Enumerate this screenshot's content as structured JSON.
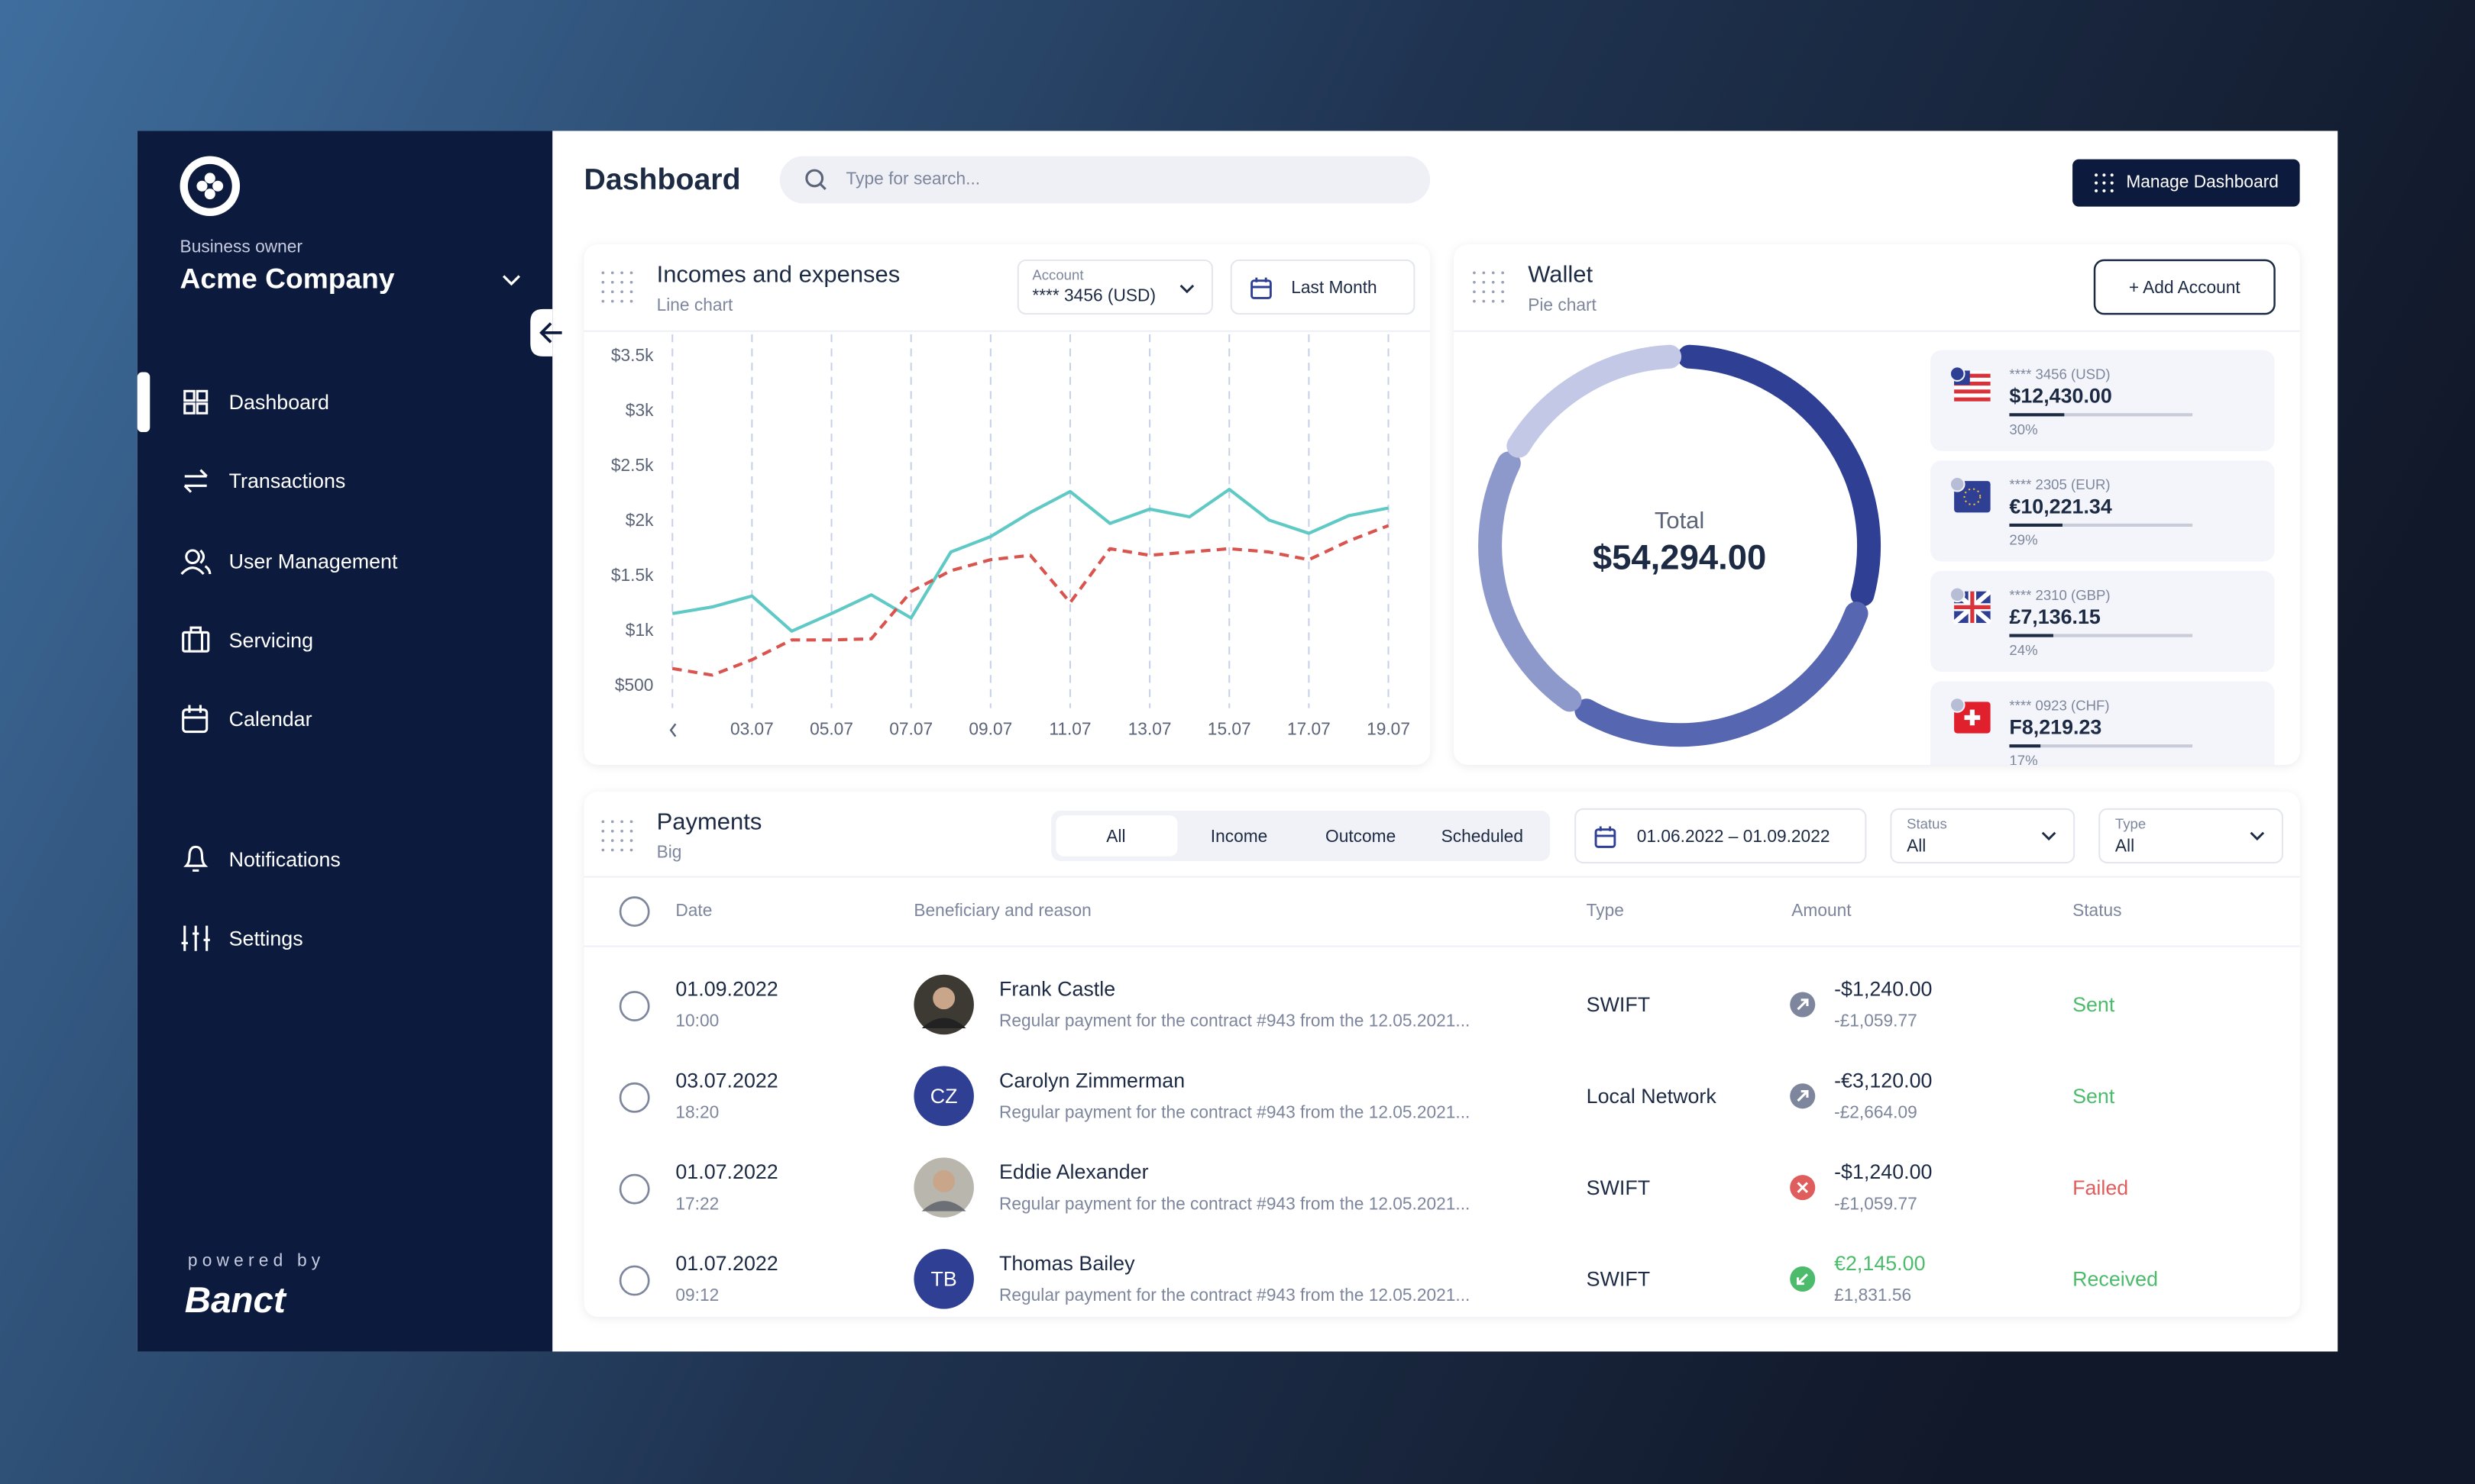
{
  "sidebar": {
    "role": "Business owner",
    "company": "Acme Company",
    "nav": [
      "Dashboard",
      "Transactions",
      "User Management",
      "Servicing",
      "Calendar",
      "Notifications",
      "Settings"
    ],
    "powered_by": "powered by",
    "brand": "Banct"
  },
  "header": {
    "title": "Dashboard",
    "search_placeholder": "Type for search...",
    "button": "Manage Dashboard"
  },
  "incomes_card": {
    "title": "Incomes and expenses",
    "subtitle": "Line chart",
    "account_label": "Account",
    "account_value": "**** 3456 (USD)",
    "period": "Last Month",
    "chart_data": {
      "type": "line",
      "categories": [
        null,
        null,
        "03.07",
        null,
        "05.07",
        null,
        "07.07",
        null,
        "09.07",
        null,
        "11.07",
        null,
        "13.07",
        null,
        "15.07",
        null,
        "17.07",
        null,
        "19.07"
      ],
      "series": [
        {
          "color": "#5ec9c5",
          "values": [
            1160,
            1220,
            1320,
            1000,
            1160,
            1330,
            1120,
            1720,
            1860,
            2080,
            2270,
            1980,
            2110,
            2040,
            2290,
            2010,
            1890,
            2050,
            2120
          ]
        },
        {
          "color": "#d9534f",
          "dashed": true,
          "values": [
            660,
            600,
            740,
            920,
            920,
            930,
            1360,
            1550,
            1650,
            1690,
            1260,
            1750,
            1690,
            1720,
            1750,
            1720,
            1650,
            1820,
            1960
          ]
        }
      ],
      "ylim": [
        300,
        3700
      ],
      "yticks": [
        {
          "value": 500,
          "label": "$500"
        },
        {
          "value": 1000,
          "label": "$1k"
        },
        {
          "value": 1500,
          "label": "$1.5k"
        },
        {
          "value": 2000,
          "label": "$2k"
        },
        {
          "value": 2500,
          "label": "$2.5k"
        },
        {
          "value": 3000,
          "label": "$3k"
        },
        {
          "value": 3500,
          "label": "$3.5k"
        }
      ],
      "grid": true
    }
  },
  "wallet_card": {
    "title": "Wallet",
    "subtitle": "Pie chart",
    "button": "+ Add Account",
    "total_label": "Total",
    "total": "$54,294.00",
    "accounts": [
      {
        "number": "**** 3456 (USD)",
        "balance": "$12,430.00",
        "share": 30,
        "share_label": "30%",
        "color": "#2e3f94"
      },
      {
        "number": "**** 2305 (EUR)",
        "balance": "€10,221.34",
        "share": 29,
        "share_label": "29%",
        "color": "#5766b0"
      },
      {
        "number": "**** 2310 (GBP)",
        "balance": "£7,136.15",
        "share": 24,
        "share_label": "24%",
        "color": "#8e99cb"
      },
      {
        "number": "**** 0923 (CHF)",
        "balance": "F8,219.23",
        "share": 17,
        "share_label": "17%",
        "color": "#c2c8e5"
      }
    ]
  },
  "payments_card": {
    "title": "Payments",
    "subtitle": "Big",
    "tabs": [
      "All",
      "Income",
      "Outcome",
      "Scheduled"
    ],
    "date_range": "01.06.2022 – 01.09.2022",
    "status_filter": {
      "label": "Status",
      "value": "All"
    },
    "type_filter": {
      "label": "Type",
      "value": "All"
    },
    "columns": [
      "Date",
      "Beneficiary and reason",
      "Type",
      "Amount",
      "Status"
    ],
    "rows": [
      {
        "date": "01.09.2022",
        "time": "10:00",
        "name": "Frank Castle",
        "reason": "Regular payment for the contract #943 from the 12.05.2021...",
        "type": "SWIFT",
        "amount": "-$1,240.00",
        "amount_secondary": "-£1,059.77",
        "amount_color": "#1d2a44",
        "icon_color": "#7d869c",
        "status": "Sent",
        "status_color": "#4cbb6c"
      },
      {
        "date": "03.07.2022",
        "time": "18:20",
        "name": "Carolyn Zimmerman",
        "initials": "CZ",
        "reason": "Regular payment for the contract #943 from the 12.05.2021...",
        "type": "Local Network",
        "amount": "-€3,120.00",
        "amount_secondary": "-£2,664.09",
        "amount_color": "#1d2a44",
        "icon_color": "#7d869c",
        "status": "Sent",
        "status_color": "#4cbb6c"
      },
      {
        "date": "01.07.2022",
        "time": "17:22",
        "name": "Eddie Alexander",
        "reason": "Regular payment for the contract #943 from the 12.05.2021...",
        "type": "SWIFT",
        "amount": "-$1,240.00",
        "amount_secondary": "-£1,059.77",
        "amount_color": "#1d2a44",
        "icon_color": "#e05d5d",
        "status": "Failed",
        "status_color": "#e05d5d"
      },
      {
        "date": "01.07.2022",
        "time": "09:12",
        "name": "Thomas Bailey",
        "initials": "TB",
        "reason": "Regular payment for the contract #943 from the 12.05.2021...",
        "type": "SWIFT",
        "amount": "€2,145.00",
        "amount_secondary": "£1,831.56",
        "amount_color": "#4cbb6c",
        "icon_color": "#4cbb6c",
        "status": "Received",
        "status_color": "#4cbb6c"
      }
    ]
  }
}
